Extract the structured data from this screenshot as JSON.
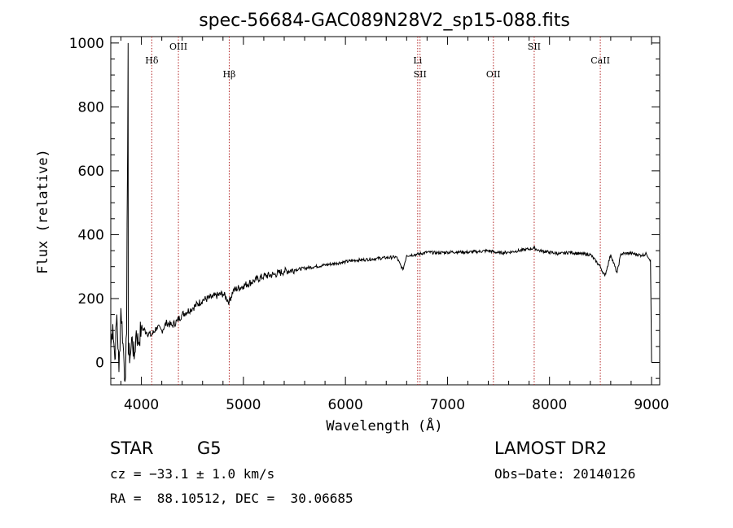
{
  "chart_data": {
    "type": "line",
    "title": "spec-56684-GAC089N28V2_sp15-088.fits",
    "xlabel": "Wavelength (Å)",
    "ylabel": "Flux (relative)",
    "xlim": [
      3700,
      9080
    ],
    "ylim": [
      -70,
      1020
    ],
    "xticks": [
      4000,
      5000,
      6000,
      7000,
      8000,
      9000
    ],
    "yticks": [
      0,
      200,
      400,
      600,
      800,
      1000
    ],
    "grid": false,
    "color": "#000000",
    "spectrum": [
      [
        3700,
        50
      ],
      [
        3720,
        120
      ],
      [
        3740,
        10
      ],
      [
        3760,
        150
      ],
      [
        3780,
        -30
      ],
      [
        3800,
        170
      ],
      [
        3820,
        60
      ],
      [
        3840,
        -60
      ],
      [
        3855,
        90
      ],
      [
        3870,
        1000
      ],
      [
        3872,
        30
      ],
      [
        3890,
        20
      ],
      [
        3910,
        80
      ],
      [
        3930,
        10
      ],
      [
        3950,
        100
      ],
      [
        3970,
        60
      ],
      [
        4000,
        110
      ],
      [
        4050,
        95
      ],
      [
        4100,
        85
      ],
      [
        4150,
        110
      ],
      [
        4200,
        100
      ],
      [
        4250,
        125
      ],
      [
        4300,
        115
      ],
      [
        4350,
        130
      ],
      [
        4400,
        150
      ],
      [
        4500,
        170
      ],
      [
        4600,
        195
      ],
      [
        4700,
        205
      ],
      [
        4800,
        215
      ],
      [
        4861,
        190
      ],
      [
        4900,
        225
      ],
      [
        5000,
        240
      ],
      [
        5100,
        255
      ],
      [
        5200,
        270
      ],
      [
        5300,
        275
      ],
      [
        5400,
        285
      ],
      [
        5500,
        290
      ],
      [
        5600,
        295
      ],
      [
        5700,
        300
      ],
      [
        5800,
        305
      ],
      [
        5900,
        310
      ],
      [
        6000,
        315
      ],
      [
        6100,
        320
      ],
      [
        6200,
        322
      ],
      [
        6300,
        325
      ],
      [
        6400,
        328
      ],
      [
        6500,
        330
      ],
      [
        6563,
        290
      ],
      [
        6600,
        335
      ],
      [
        6700,
        338
      ],
      [
        6800,
        345
      ],
      [
        6900,
        343
      ],
      [
        7000,
        345
      ],
      [
        7100,
        346
      ],
      [
        7200,
        345
      ],
      [
        7300,
        347
      ],
      [
        7400,
        350
      ],
      [
        7500,
        343
      ],
      [
        7600,
        345
      ],
      [
        7700,
        350
      ],
      [
        7800,
        355
      ],
      [
        7850,
        358
      ],
      [
        7900,
        350
      ],
      [
        8000,
        345
      ],
      [
        8100,
        340
      ],
      [
        8200,
        345
      ],
      [
        8300,
        340
      ],
      [
        8400,
        338
      ],
      [
        8498,
        300
      ],
      [
        8542,
        270
      ],
      [
        8600,
        338
      ],
      [
        8662,
        280
      ],
      [
        8700,
        340
      ],
      [
        8800,
        342
      ],
      [
        8900,
        335
      ],
      [
        8950,
        340
      ],
      [
        8990,
        320
      ],
      [
        9000,
        0
      ]
    ],
    "lines": [
      {
        "label": "Hδ",
        "wavelength": 4102
      },
      {
        "label": "OIII",
        "wavelength": 4363
      },
      {
        "label": "Hβ",
        "wavelength": 4861
      },
      {
        "label": "Li",
        "wavelength": 6708
      },
      {
        "label": "SII",
        "wavelength": 6731
      },
      {
        "label": "OII",
        "wavelength": 7450
      },
      {
        "label": "SII",
        "wavelength": 7850
      },
      {
        "label": "CaII",
        "wavelength": 8498
      }
    ],
    "line_color": "#b22222"
  },
  "info": {
    "class": "STAR",
    "subclass": "G5",
    "survey": "LAMOST DR2",
    "cz": "cz = −33.1 ± 1.0 km/s",
    "obs_date": "Obs−Date: 20140126",
    "coords": "RA =  88.10512, DEC =  30.06685"
  }
}
